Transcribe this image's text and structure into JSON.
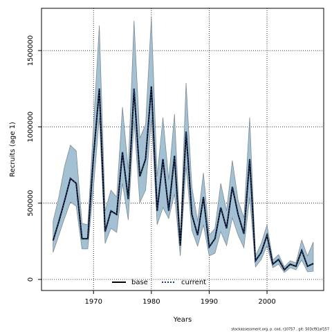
{
  "chart_data": {
    "type": "line",
    "x_label": "Years",
    "y_label": "Recruits (age 1)",
    "footer": "stockassessment.org, p. cod, r10757 , git: 503cf91af157",
    "x": [
      1963,
      1964,
      1965,
      1966,
      1967,
      1968,
      1969,
      1970,
      1971,
      1972,
      1973,
      1974,
      1975,
      1976,
      1977,
      1978,
      1979,
      1980,
      1981,
      1982,
      1983,
      1984,
      1985,
      1986,
      1987,
      1988,
      1989,
      1990,
      1991,
      1992,
      1993,
      1994,
      1995,
      1996,
      1997,
      1998,
      1999,
      2000,
      2001,
      2002,
      2003,
      2004,
      2005,
      2006,
      2007,
      2008
    ],
    "series": [
      {
        "name": "base",
        "color": "#000000",
        "dash": "solid",
        "values": [
          254000,
          380000,
          517000,
          662000,
          630000,
          267000,
          267000,
          811000,
          1251000,
          313000,
          449000,
          426000,
          834000,
          526000,
          1251000,
          675000,
          789000,
          1265000,
          449000,
          789000,
          449000,
          811000,
          222000,
          970000,
          426000,
          290000,
          540000,
          213000,
          267000,
          471000,
          335000,
          607000,
          426000,
          299000,
          789000,
          122000,
          177000,
          290000,
          100000,
          131000,
          63000,
          100000,
          86000,
          190000,
          86000,
          104000
        ]
      },
      {
        "name": "current",
        "color": "#1f3a6e",
        "dash": "dotted",
        "values": [
          254000,
          380000,
          517000,
          662000,
          630000,
          267000,
          267000,
          811000,
          1251000,
          313000,
          449000,
          426000,
          834000,
          526000,
          1251000,
          675000,
          789000,
          1265000,
          449000,
          789000,
          449000,
          811000,
          222000,
          970000,
          426000,
          290000,
          540000,
          213000,
          267000,
          471000,
          335000,
          607000,
          426000,
          299000,
          789000,
          122000,
          177000,
          290000,
          100000,
          131000,
          63000,
          100000,
          86000,
          190000,
          86000,
          104000
        ]
      }
    ],
    "band": {
      "color": "#a3c1d3",
      "lower": [
        177000,
        290000,
        403000,
        508000,
        480000,
        200000,
        200000,
        607000,
        1061000,
        236000,
        335000,
        308000,
        630000,
        390000,
        1038000,
        503000,
        585000,
        1061000,
        358000,
        471000,
        399000,
        562000,
        154000,
        743000,
        322000,
        218000,
        358000,
        154000,
        172000,
        313000,
        222000,
        403000,
        290000,
        208000,
        540000,
        82000,
        131000,
        222000,
        77000,
        100000,
        45000,
        77000,
        63000,
        127000,
        50000,
        54000
      ],
      "upper": [
        380000,
        540000,
        743000,
        880000,
        843000,
        367000,
        358000,
        1015000,
        1664000,
        449000,
        585000,
        540000,
        1129000,
        721000,
        1695000,
        925000,
        1015000,
        1718000,
        675000,
        1061000,
        653000,
        1083000,
        267000,
        1288000,
        607000,
        381000,
        698000,
        290000,
        335000,
        630000,
        449000,
        780000,
        517000,
        403000,
        1061000,
        154000,
        236000,
        358000,
        127000,
        163000,
        82000,
        122000,
        109000,
        258000,
        154000,
        245000
      ]
    },
    "xlim": [
      1961,
      2009.8
    ],
    "ylim": [
      -72500,
      1777000
    ],
    "xticks": [
      1970,
      1980,
      1990,
      2000
    ],
    "yticks": [
      0,
      500000,
      1000000,
      1500000
    ],
    "grid": true,
    "legend": "bottom"
  }
}
